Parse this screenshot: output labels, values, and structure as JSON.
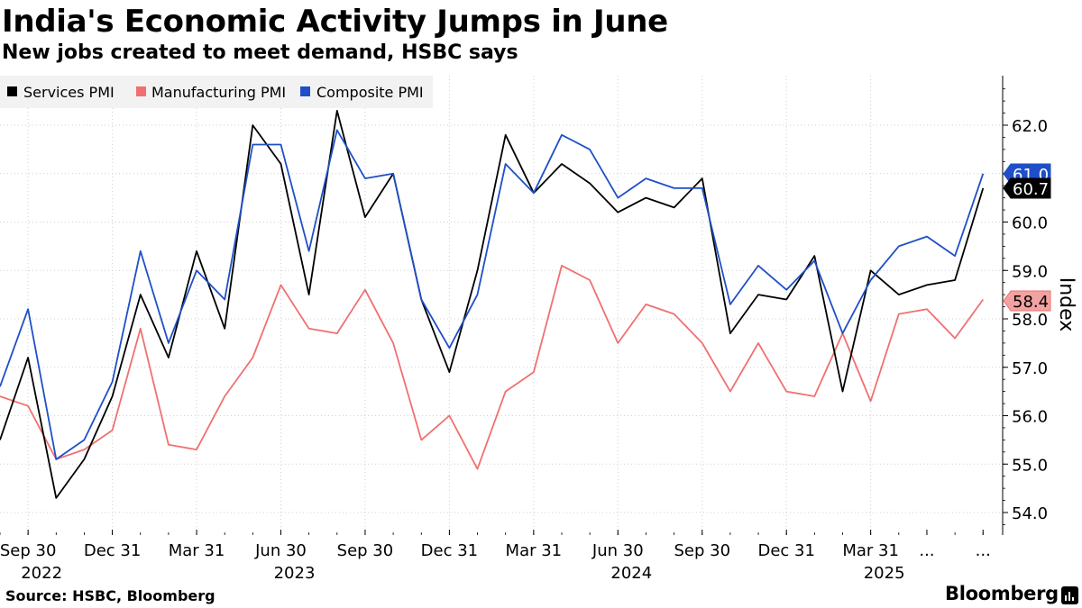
{
  "header": {
    "title": "India's Economic Activity Jumps in June",
    "subtitle": "New jobs created to meet demand, HSBC says"
  },
  "footer": {
    "source": "Source: HSBC, Bloomberg",
    "brand": "Bloomberg"
  },
  "colors": {
    "services": "#000000",
    "manufacturing": "#f07070",
    "composite": "#1f4fc8",
    "legend_bg": "#f2f2f2"
  },
  "chart_data": {
    "type": "line",
    "title": "India's Economic Activity Jumps in June",
    "subtitle": "New jobs created to meet demand, HSBC says",
    "ylabel": "Index",
    "ylim": [
      53.6,
      62.9
    ],
    "yticks": [
      "54.0",
      "55.0",
      "56.0",
      "57.0",
      "58.0",
      "59.0",
      "60.0",
      "61.0",
      "62.0"
    ],
    "x_labels": [
      "Sep 30",
      "Dec 31",
      "Mar 31",
      "Jun 30",
      "Sep 30",
      "Dec 31",
      "Mar 31",
      "Jun 30",
      "Sep 30",
      "Dec 31",
      "Mar 31",
      "...",
      "..."
    ],
    "year_labels": [
      "2022",
      "2023",
      "2024",
      "2025"
    ],
    "legend_position": "top-left",
    "series": [
      {
        "name": "Services PMI",
        "key": "services",
        "color": "#000000",
        "last_label": "60.7",
        "values": [
          55.5,
          57.2,
          54.3,
          55.1,
          56.4,
          58.5,
          57.2,
          59.4,
          57.8,
          62.0,
          61.2,
          58.5,
          62.3,
          60.1,
          61.0,
          58.4,
          56.9,
          59.0,
          61.8,
          60.6,
          61.2,
          60.8,
          60.2,
          60.5,
          60.3,
          60.9,
          57.7,
          58.5,
          58.4,
          59.3,
          56.5,
          59.0,
          58.5,
          58.7,
          58.8,
          60.7
        ]
      },
      {
        "name": "Manufacturing PMI",
        "key": "manufacturing",
        "color": "#f07070",
        "last_label": "58.4",
        "values": [
          56.4,
          56.2,
          55.1,
          55.3,
          55.7,
          57.8,
          55.4,
          55.3,
          56.4,
          57.2,
          58.7,
          57.8,
          57.7,
          58.6,
          57.5,
          55.5,
          56.0,
          54.9,
          56.5,
          56.9,
          59.1,
          58.8,
          57.5,
          58.3,
          58.1,
          57.5,
          56.5,
          57.5,
          56.5,
          56.4,
          57.7,
          56.3,
          58.1,
          58.2,
          57.6,
          58.4
        ]
      },
      {
        "name": "Composite PMI",
        "key": "composite",
        "color": "#1f4fc8",
        "last_label": "61.0",
        "values": [
          56.6,
          58.2,
          55.1,
          55.5,
          56.7,
          59.4,
          57.5,
          59.0,
          58.4,
          61.6,
          61.6,
          59.4,
          61.9,
          60.9,
          61.0,
          58.4,
          57.4,
          58.5,
          61.2,
          60.6,
          61.8,
          61.5,
          60.5,
          60.9,
          60.7,
          60.7,
          58.3,
          59.1,
          58.6,
          59.2,
          57.7,
          58.8,
          59.5,
          59.7,
          59.3,
          61.0
        ]
      }
    ]
  }
}
